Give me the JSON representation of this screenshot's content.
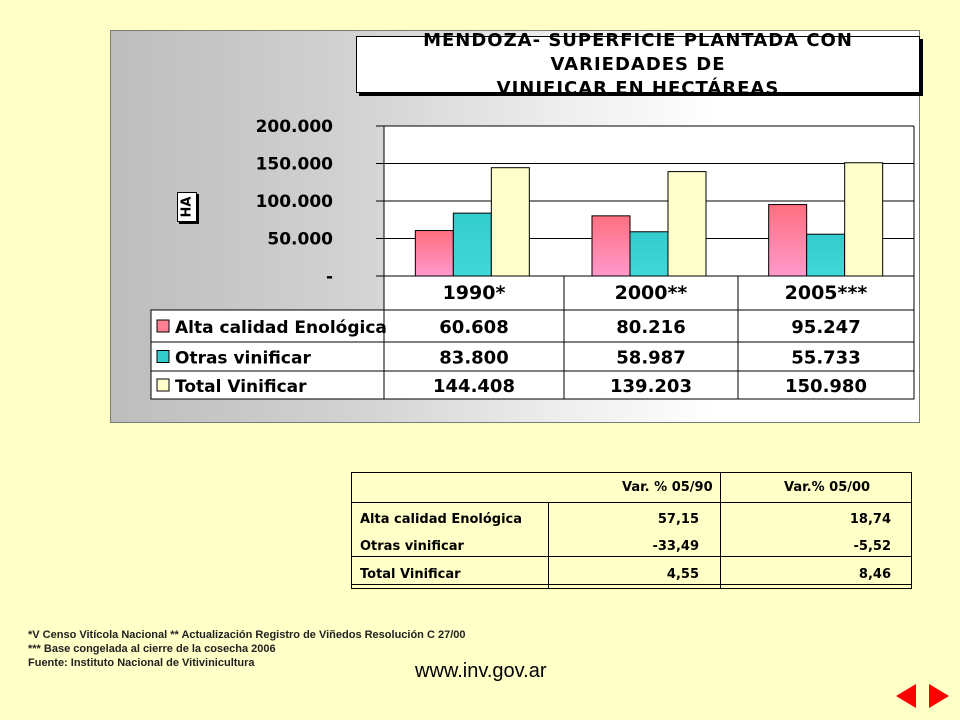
{
  "chart_data": {
    "type": "bar",
    "title": "MENDOZA- SUPERFICIE PLANTADA CON VARIEDADES DE VINIFICAR EN HECTÁREAS",
    "title_lines": [
      "MENDOZA- SUPERFICIE PLANTADA CON VARIEDADES DE",
      "VINIFICAR EN HECTÁREAS"
    ],
    "ylabel": "HA",
    "ylim": [
      0,
      200000
    ],
    "y_ticks": [
      "-",
      "50.000",
      "100.000",
      "150.000",
      "200.000"
    ],
    "y_tick_values": [
      0,
      50000,
      100000,
      150000,
      200000
    ],
    "categories": [
      "1990*",
      "2000**",
      "2005***"
    ],
    "grid": true,
    "legend_placement": "data-table",
    "series": [
      {
        "name": "Alta calidad Enológica",
        "values": [
          60608,
          80216,
          95247
        ],
        "labels": [
          "60.608",
          "80.216",
          "95.247"
        ],
        "color": "#ff7f93"
      },
      {
        "name": "Otras vinificar",
        "values": [
          83800,
          58987,
          55733
        ],
        "labels": [
          "83.800",
          "58.987",
          "55.733"
        ],
        "color": "#33cccc"
      },
      {
        "name": "Total Vinificar",
        "values": [
          144408,
          139203,
          150980
        ],
        "labels": [
          "144.408",
          "139.203",
          "150.980"
        ],
        "color": "#ffffcc"
      }
    ]
  },
  "variation_table": {
    "headers": [
      "Var. % 05/90",
      "Var.% 05/00"
    ],
    "rows": [
      {
        "label": "Alta calidad Enológica",
        "v1": "57,15",
        "v2": "18,74"
      },
      {
        "label": "Otras vinificar",
        "v1": "-33,49",
        "v2": "-5,52"
      },
      {
        "label": "Total Vinificar",
        "v1": "4,55",
        "v2": "8,46"
      }
    ]
  },
  "notes": {
    "line1": "*V Censo Vitícola Nacional ** Actualización Registro de Viñedos Resolución C 27/00",
    "line2": "*** Base congelada al cierre de la cosecha 2006",
    "line3": "Fuente: Instituto Nacional de Vitivinicultura"
  },
  "website": "www.inv.gov.ar",
  "nav": {
    "color": "#ff0000",
    "prev_icon": "triangle-left",
    "next_icon": "triangle-right"
  }
}
